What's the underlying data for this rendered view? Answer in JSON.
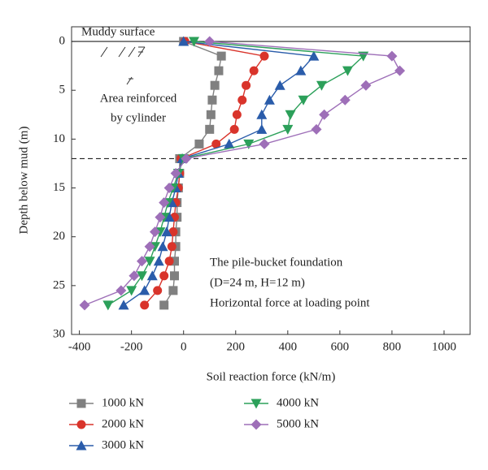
{
  "chart_data": {
    "type": "line",
    "xlabel": "Soil reaction force (kN/m)",
    "ylabel": "Depth below mud (m)",
    "annotations": [
      "Muddy surface",
      "Area reinforced",
      "by cylinder",
      "The pile-bucket foundation",
      "(D=24 m, H=12 m)",
      "Horizontal force at loading point"
    ],
    "xlim": [
      -430,
      1100
    ],
    "xticks": [
      -400,
      -200,
      0,
      200,
      400,
      600,
      800,
      1000
    ],
    "ylim": [
      -1.5,
      30
    ],
    "yticks": [
      0,
      5,
      10,
      15,
      20,
      25,
      30
    ],
    "y_inverted": true,
    "hlines": [
      {
        "value": 0,
        "style": "solid"
      },
      {
        "value": 12,
        "style": "dashed"
      }
    ],
    "y": [
      0,
      1.5,
      3,
      4.5,
      6,
      7.5,
      9,
      10.5,
      12,
      13.5,
      15,
      16.5,
      18,
      19.5,
      21,
      22.5,
      24,
      25.5,
      27
    ],
    "series": [
      {
        "name": "1000 kN",
        "color": "#808080",
        "marker": "square",
        "values": [
          0,
          145,
          135,
          120,
          110,
          105,
          100,
          60,
          -15,
          -15,
          -20,
          -25,
          -25,
          -30,
          -30,
          -35,
          -35,
          -40,
          -75
        ]
      },
      {
        "name": "2000 kN",
        "color": "#d9342b",
        "marker": "circle",
        "values": [
          5,
          310,
          270,
          240,
          225,
          205,
          195,
          125,
          -10,
          -15,
          -20,
          -30,
          -35,
          -40,
          -45,
          -55,
          -75,
          -100,
          -150
        ]
      },
      {
        "name": "3000 kN",
        "color": "#2a5caa",
        "marker": "triangle-up",
        "values": [
          0,
          500,
          450,
          370,
          330,
          300,
          300,
          175,
          -5,
          -20,
          -30,
          -45,
          -55,
          -65,
          -80,
          -95,
          -120,
          -150,
          -230
        ]
      },
      {
        "name": "4000 kN",
        "color": "#2ca05a",
        "marker": "triangle-down",
        "values": [
          40,
          690,
          630,
          530,
          460,
          410,
          400,
          250,
          0,
          -20,
          -40,
          -60,
          -75,
          -90,
          -110,
          -130,
          -160,
          -200,
          -290
        ]
      },
      {
        "name": "5000 kN",
        "color": "#9e6fb8",
        "marker": "diamond",
        "values": [
          100,
          800,
          830,
          700,
          620,
          540,
          510,
          310,
          10,
          -30,
          -55,
          -75,
          -90,
          -110,
          -130,
          -160,
          -190,
          -240,
          -380
        ]
      }
    ]
  }
}
